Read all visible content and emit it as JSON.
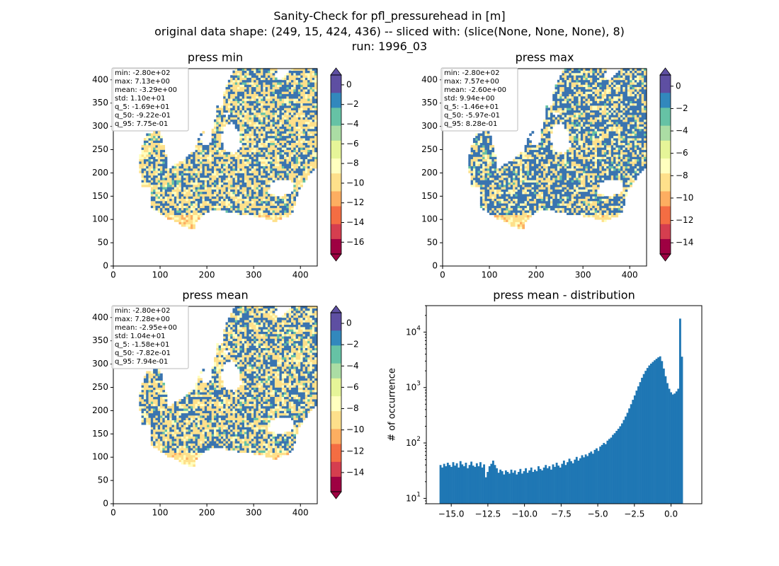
{
  "figure": {
    "title_lines": [
      "Sanity-Check for pfl_pressurehead in [m]",
      "original data shape: (249, 15, 424, 436) -- sliced with: (slice(None, None, None), 8)",
      "run: 1996_03"
    ]
  },
  "colors": {
    "cmap": [
      "#9e0142",
      "#d53e4f",
      "#f46d43",
      "#fdae61",
      "#fee08b",
      "#ffffbf",
      "#e6f598",
      "#abdda4",
      "#66c2a5",
      "#3288bd",
      "#5e4fa2"
    ],
    "water_blue": "#3a74b0",
    "hist_bar": "#1f77b4"
  },
  "chart_data": [
    {
      "type": "heatmap",
      "title": "press min",
      "xlim": [
        0,
        436
      ],
      "ylim": [
        0,
        424
      ],
      "x_ticks": [
        0,
        100,
        200,
        300,
        400
      ],
      "y_ticks": [
        0,
        50,
        100,
        150,
        200,
        250,
        300,
        350,
        400
      ],
      "colorbar": {
        "vmin": -17.2,
        "vmax": 1.0,
        "ticks": [
          0,
          -2,
          -4,
          -6,
          -8,
          -10,
          -12,
          -14,
          -16
        ],
        "extend": "both"
      },
      "stats": [
        "min: -2.80e+02",
        "max: 7.13e+00",
        "mean: -3.29e+00",
        "std: 1.10e+01",
        "q_5: -1.69e+01",
        "q_50: -9.22e-01",
        "q_95: 7.75e-01"
      ]
    },
    {
      "type": "heatmap",
      "title": "press max",
      "xlim": [
        0,
        436
      ],
      "ylim": [
        0,
        424
      ],
      "x_ticks": [
        0,
        100,
        200,
        300,
        400
      ],
      "y_ticks": [
        0,
        50,
        100,
        150,
        200,
        250,
        300,
        350,
        400
      ],
      "colorbar": {
        "vmin": -15.0,
        "vmax": 1.0,
        "ticks": [
          0,
          -2,
          -4,
          -6,
          -8,
          -10,
          -12,
          -14
        ],
        "extend": "both"
      },
      "stats": [
        "min: -2.80e+02",
        "max: 7.57e+00",
        "mean: -2.60e+00",
        "std: 9.94e+00",
        "q_5: -1.46e+01",
        "q_50: -5.97e-01",
        "q_95: 8.28e-01"
      ]
    },
    {
      "type": "heatmap",
      "title": "press mean",
      "xlim": [
        0,
        436
      ],
      "ylim": [
        0,
        424
      ],
      "x_ticks": [
        0,
        100,
        200,
        300,
        400
      ],
      "y_ticks": [
        0,
        50,
        100,
        150,
        200,
        250,
        300,
        350,
        400
      ],
      "colorbar": {
        "vmin": -15.8,
        "vmax": 1.0,
        "ticks": [
          0,
          -2,
          -4,
          -6,
          -8,
          -10,
          -12,
          -14
        ],
        "extend": "both"
      },
      "stats": [
        "min: -2.80e+02",
        "max: 7.28e+00",
        "mean: -2.95e+00",
        "std: 1.04e+01",
        "q_5: -1.58e+01",
        "q_50: -7.82e-01",
        "q_95: 7.94e-01"
      ]
    },
    {
      "type": "bar",
      "title": "press mean - distribution",
      "xlabel": "",
      "ylabel": "# of occurrence",
      "xlim": [
        -16.7,
        2.1
      ],
      "ylim": [
        8,
        30000
      ],
      "log_y": true,
      "x_ticks": [
        -15.0,
        -12.5,
        -10.0,
        -7.5,
        -5.0,
        -2.5,
        0.0
      ],
      "x_tick_labels": [
        "−15.0",
        "−12.5",
        "−10.0",
        "−7.5",
        "−5.0",
        "−2.5",
        "0.0"
      ],
      "y_ticks": [
        10,
        100,
        1000,
        10000
      ],
      "bins": {
        "start": -15.8,
        "end": 0.8
      },
      "counts": [
        40,
        36,
        42,
        38,
        44,
        40,
        37,
        45,
        39,
        43,
        36,
        47,
        41,
        38,
        44,
        35,
        40,
        46,
        39,
        37,
        43,
        38,
        45,
        36,
        41,
        24,
        30,
        38,
        42,
        48,
        40,
        35,
        29,
        33,
        31,
        27,
        32,
        30,
        28,
        33,
        29,
        32,
        27,
        30,
        34,
        28,
        31,
        35,
        29,
        32,
        36,
        30,
        33,
        31,
        38,
        34,
        32,
        36,
        40,
        35,
        38,
        33,
        41,
        37,
        44,
        39,
        36,
        42,
        48,
        40,
        45,
        52,
        47,
        43,
        50,
        56,
        48,
        53,
        60,
        55,
        62,
        58,
        66,
        70,
        64,
        75,
        80,
        72,
        86,
        92,
        100,
        95,
        110,
        118,
        125,
        140,
        150,
        165,
        180,
        200,
        225,
        260,
        300,
        350,
        420,
        500,
        600,
        720,
        880,
        1050,
        1250,
        1500,
        1750,
        2000,
        2250,
        2500,
        2700,
        2900,
        3100,
        3300,
        3500,
        3650,
        3000,
        2200,
        1600,
        1200,
        950,
        820,
        750,
        780,
        850,
        950,
        17500,
        3600
      ]
    }
  ]
}
